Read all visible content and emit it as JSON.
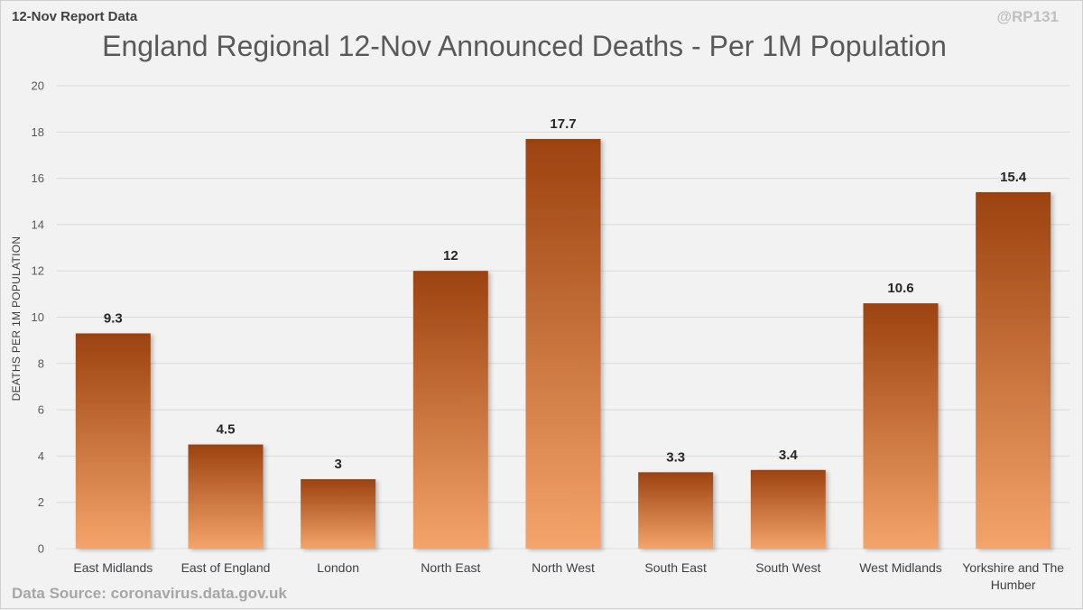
{
  "header": {
    "report_label": "12-Nov Report Data",
    "handle": "@RP131"
  },
  "footer": {
    "source": "Data Source: coronavirus.data.gov.uk"
  },
  "colors": {
    "bar_top": "#9c4210",
    "bar_bottom": "#f4a46a",
    "grid": "#d9d9d9",
    "background": "#f2f2f2"
  },
  "chart_data": {
    "type": "bar",
    "title": "England Regional 12-Nov Announced Deaths - Per 1M Population",
    "xlabel": "",
    "ylabel": "DEATHS PER 1M POPULATION",
    "ylim": [
      0,
      20
    ],
    "yticks": [
      0,
      2,
      4,
      6,
      8,
      10,
      12,
      14,
      16,
      18,
      20
    ],
    "grid": true,
    "legend": "none",
    "categories": [
      [
        "East Midlands"
      ],
      [
        "East of England"
      ],
      [
        "London"
      ],
      [
        "North East"
      ],
      [
        "North West"
      ],
      [
        "South East"
      ],
      [
        "South West"
      ],
      [
        "West Midlands"
      ],
      [
        "Yorkshire and The",
        "Humber"
      ]
    ],
    "values": [
      9.3,
      4.5,
      3,
      12,
      17.7,
      3.3,
      3.4,
      10.6,
      15.4
    ]
  }
}
